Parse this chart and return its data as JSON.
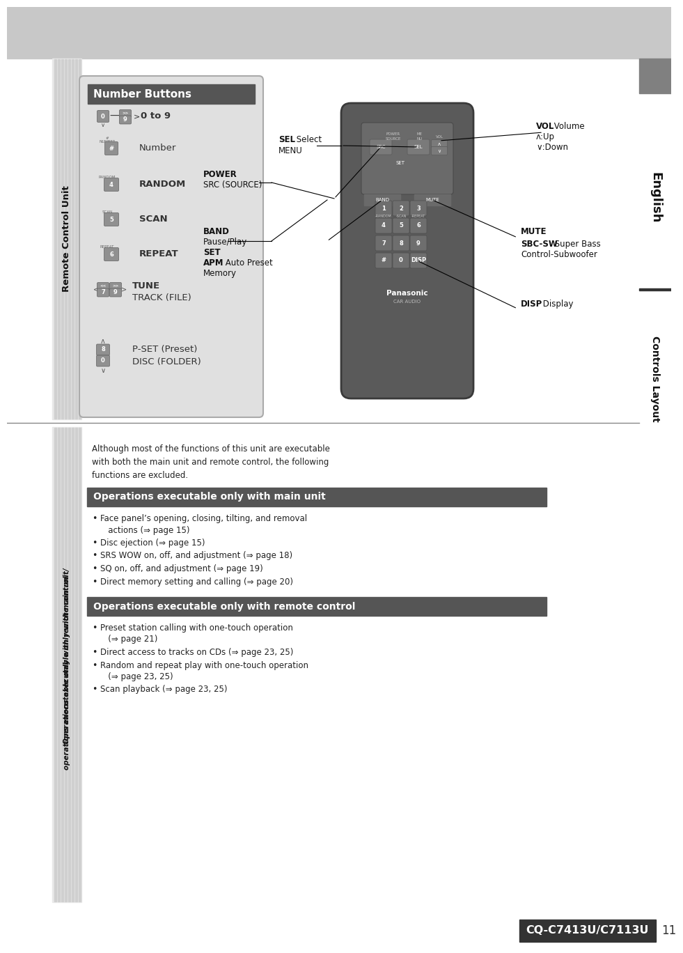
{
  "page_bg": "#ffffff",
  "header_bg": "#c8c8c8",
  "title": "Number Buttons",
  "title_bg": "#555555",
  "title_fg": "#ffffff",
  "section1_title": "Operations executable only with main unit",
  "section2_title": "Operations executable only with remote control",
  "section_title_bg": "#555555",
  "section_title_fg": "#ffffff",
  "left_rotated_text_top": "Remote Control Unit",
  "left_rotated_text_bot1": "Operations executable only with main unit/",
  "left_rotated_text_bot2": "operations executable only with remote control",
  "right_rotated_english": "English",
  "right_rotated_controls": "Controls Layout",
  "main_unit_bullets": [
    [
      "Face panel’s opening, closing, tilting, and removal",
      "   actions (⇒ page 15)"
    ],
    [
      "Disc ejection (⇒ page 15)"
    ],
    [
      "SRS WOW on, off, and adjustment (⇒ page 18)"
    ],
    [
      "SQ on, off, and adjustment (⇒ page 19)"
    ],
    [
      "Direct memory setting and calling (⇒ page 20)"
    ]
  ],
  "remote_bullets": [
    [
      "Preset station calling with one-touch operation",
      "   (⇒ page 21)"
    ],
    [
      "Direct access to tracks on CDs (⇒ page 23, 25)"
    ],
    [
      "Random and repeat play with one-touch operation",
      "   (⇒ page 23, 25)"
    ],
    [
      "Scan playback (⇒ page 23, 25)"
    ]
  ],
  "intro_text": "Although most of the functions of this unit are executable\nwith both the main unit and remote control, the following\nfunctions are excluded.",
  "footer_model": "CQ-C7413U/C7113U",
  "footer_page": "11"
}
